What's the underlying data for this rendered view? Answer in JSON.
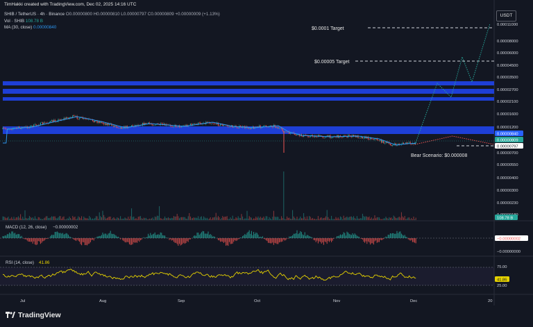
{
  "header": {
    "credit": "TimHakki created with TradingView.com, Dec 02, 2025 14:16 UTC",
    "symbol": "SHIB / TetherUS · 4h · Binance",
    "ohlc": "O0.00000800 H0.00000810 L0.00000797 C0.00000809 +0.00000009 (+1.13%)",
    "volume_label": "Vol · SHIB",
    "volume_value": "108.78 B",
    "ma_label": "MA (30, close)",
    "ma_value": "0.00000840",
    "currency": "USDT"
  },
  "price_axis": {
    "ticks": [
      "0.00011000",
      "0.00008000",
      "0.00006000",
      "0.00004500",
      "0.00003500",
      "0.00002700",
      "0.00002100",
      "0.00001600",
      "0.00001200",
      "0.00000700",
      "0.00000550",
      "0.00000400",
      "0.00000300",
      "0.00000230",
      "0.00000180"
    ],
    "tags": [
      {
        "text": "0.00000840",
        "color": "#2962ff"
      },
      {
        "text": "0.00000809",
        "color": "#26a69a"
      },
      {
        "text": "0.00000797",
        "color": "#ffffff"
      }
    ]
  },
  "annotations": {
    "target_1": "$0.0001 Target",
    "target_2": "$0.00005 Target",
    "bear": "Bear Scenario: $0.000008"
  },
  "volume_pane": {
    "tag": "108.78 B"
  },
  "macd": {
    "label": "MACD (12, 26, close)",
    "value": "−0.00000002",
    "axis_tag": "−0.00000002",
    "axis_low": "−0.00000000"
  },
  "rsi": {
    "label": "RSI (14, close)",
    "value": "41.86",
    "axis_75": "75.00",
    "axis_25": "25.00",
    "tag": "41.86"
  },
  "time_axis": [
    "Jul",
    "Aug",
    "Sep",
    "Oct",
    "Nov",
    "Dec",
    "20"
  ],
  "brand": "TradingView",
  "colors": {
    "background": "#131722",
    "zone_blue": "#1e3fd6",
    "up": "#26a69a",
    "down": "#ef5350",
    "ma": "#2c96f0",
    "rsi": "#e6d200",
    "target_line": "#d1d4dc",
    "path_bull": "#26a69a",
    "path_bear": "#ef5350"
  }
}
